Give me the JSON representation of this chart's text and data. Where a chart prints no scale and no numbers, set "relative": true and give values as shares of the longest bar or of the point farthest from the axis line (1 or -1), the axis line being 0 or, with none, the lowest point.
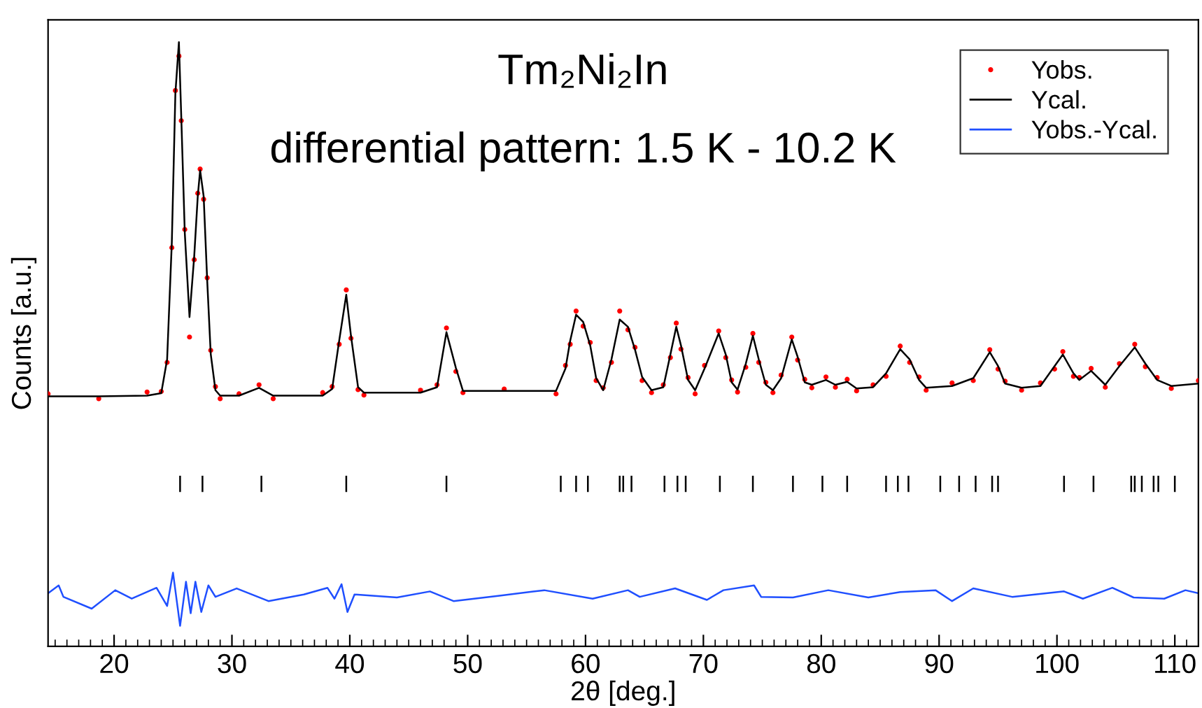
{
  "chart_data": {
    "type": "line",
    "title": "Tm₂Ni₂In",
    "subtitle": "differential pattern: 1.5 K - 10.2 K",
    "xlabel": "2θ [deg.]",
    "ylabel": "Counts [a.u.]",
    "relative": true,
    "tick_labels": "x",
    "legend": "top right",
    "grid": false,
    "xlim": [
      14.4,
      112.0
    ],
    "xticks": [
      {
        "value": 15,
        "label": null
      },
      {
        "value": 16,
        "label": null
      },
      {
        "value": 17,
        "label": null
      },
      {
        "value": 18,
        "label": null
      },
      {
        "value": 19,
        "label": null
      },
      20,
      {
        "value": 21,
        "label": null
      },
      {
        "value": 22,
        "label": null
      },
      {
        "value": 23,
        "label": null
      },
      {
        "value": 24,
        "label": null
      },
      {
        "value": 25,
        "label": null
      },
      {
        "value": 26,
        "label": null
      },
      {
        "value": 27,
        "label": null
      },
      {
        "value": 28,
        "label": null
      },
      {
        "value": 29,
        "label": null
      },
      30,
      {
        "value": 31,
        "label": null
      },
      {
        "value": 32,
        "label": null
      },
      {
        "value": 33,
        "label": null
      },
      {
        "value": 34,
        "label": null
      },
      {
        "value": 35,
        "label": null
      },
      {
        "value": 36,
        "label": null
      },
      {
        "value": 37,
        "label": null
      },
      {
        "value": 38,
        "label": null
      },
      {
        "value": 39,
        "label": null
      },
      40,
      {
        "value": 41,
        "label": null
      },
      {
        "value": 42,
        "label": null
      },
      {
        "value": 43,
        "label": null
      },
      {
        "value": 44,
        "label": null
      },
      {
        "value": 45,
        "label": null
      },
      {
        "value": 46,
        "label": null
      },
      {
        "value": 47,
        "label": null
      },
      {
        "value": 48,
        "label": null
      },
      {
        "value": 49,
        "label": null
      },
      50,
      {
        "value": 51,
        "label": null
      },
      {
        "value": 52,
        "label": null
      },
      {
        "value": 53,
        "label": null
      },
      {
        "value": 54,
        "label": null
      },
      {
        "value": 55,
        "label": null
      },
      {
        "value": 56,
        "label": null
      },
      {
        "value": 57,
        "label": null
      },
      {
        "value": 58,
        "label": null
      },
      {
        "value": 59,
        "label": null
      },
      60,
      {
        "value": 61,
        "label": null
      },
      {
        "value": 62,
        "label": null
      },
      {
        "value": 63,
        "label": null
      },
      {
        "value": 64,
        "label": null
      },
      {
        "value": 65,
        "label": null
      },
      {
        "value": 66,
        "label": null
      },
      {
        "value": 67,
        "label": null
      },
      {
        "value": 68,
        "label": null
      },
      {
        "value": 69,
        "label": null
      },
      70,
      {
        "value": 71,
        "label": null
      },
      {
        "value": 72,
        "label": null
      },
      {
        "value": 73,
        "label": null
      },
      {
        "value": 74,
        "label": null
      },
      {
        "value": 75,
        "label": null
      },
      {
        "value": 76,
        "label": null
      },
      {
        "value": 77,
        "label": null
      },
      {
        "value": 78,
        "label": null
      },
      {
        "value": 79,
        "label": null
      },
      80,
      {
        "value": 81,
        "label": null
      },
      {
        "value": 82,
        "label": null
      },
      {
        "value": 83,
        "label": null
      },
      {
        "value": 84,
        "label": null
      },
      {
        "value": 85,
        "label": null
      },
      {
        "value": 86,
        "label": null
      },
      {
        "value": 87,
        "label": null
      },
      {
        "value": 88,
        "label": null
      },
      {
        "value": 89,
        "label": null
      },
      90,
      {
        "value": 91,
        "label": null
      },
      {
        "value": 92,
        "label": null
      },
      {
        "value": 93,
        "label": null
      },
      {
        "value": 94,
        "label": null
      },
      {
        "value": 95,
        "label": null
      },
      {
        "value": 96,
        "label": null
      },
      {
        "value": 97,
        "label": null
      },
      {
        "value": 98,
        "label": null
      },
      {
        "value": 99,
        "label": null
      },
      100,
      {
        "value": 101,
        "label": null
      },
      {
        "value": 102,
        "label": null
      },
      {
        "value": 103,
        "label": null
      },
      {
        "value": 104,
        "label": null
      },
      {
        "value": 105,
        "label": null
      },
      {
        "value": 106,
        "label": null
      },
      {
        "value": 107,
        "label": null
      },
      {
        "value": 108,
        "label": null
      },
      {
        "value": 109,
        "label": null
      },
      110,
      {
        "value": 111,
        "label": null
      }
    ],
    "series": [
      {
        "name": "Yobs.",
        "type": "scatter",
        "marker": "circle",
        "color": "#ff0000",
        "x": [
          14.4,
          18.7,
          22.8,
          24.0,
          24.5,
          24.9,
          25.2,
          25.5,
          25.7,
          26.0,
          26.4,
          26.8,
          27.1,
          27.3,
          27.6,
          27.9,
          28.2,
          28.6,
          29.0,
          30.6,
          32.3,
          33.5,
          37.7,
          38.5,
          39.1,
          39.7,
          40.1,
          40.7,
          41.2,
          46.0,
          47.4,
          48.2,
          49.0,
          49.6,
          53.1,
          57.5,
          58.3,
          58.7,
          59.2,
          59.8,
          60.4,
          60.9,
          61.5,
          62.2,
          62.9,
          63.6,
          64.2,
          64.8,
          65.6,
          66.6,
          67.2,
          67.7,
          68.1,
          68.7,
          69.3,
          70.1,
          71.3,
          71.9,
          72.4,
          72.9,
          73.6,
          74.2,
          74.7,
          75.3,
          75.9,
          76.6,
          77.5,
          78.0,
          78.6,
          79.2,
          80.4,
          81.2,
          82.2,
          83.0,
          84.4,
          85.5,
          86.7,
          87.5,
          88.3,
          88.9,
          91.1,
          92.9,
          94.3,
          95.0,
          95.6,
          97.0,
          98.6,
          99.8,
          100.5,
          101.4,
          101.9,
          102.9,
          104.1,
          105.3,
          106.6,
          107.5,
          108.5,
          109.7,
          112.0
        ],
        "values": [
          0.418,
          0.41,
          0.421,
          0.422,
          0.47,
          0.66,
          0.92,
          0.977,
          0.87,
          0.69,
          0.512,
          0.64,
          0.75,
          0.79,
          0.74,
          0.61,
          0.49,
          0.43,
          0.41,
          0.418,
          0.433,
          0.41,
          0.42,
          0.43,
          0.5,
          0.59,
          0.51,
          0.425,
          0.416,
          0.424,
          0.433,
          0.527,
          0.455,
          0.42,
          0.426,
          0.418,
          0.465,
          0.5,
          0.555,
          0.53,
          0.503,
          0.44,
          0.428,
          0.47,
          0.555,
          0.524,
          0.495,
          0.44,
          0.42,
          0.433,
          0.478,
          0.535,
          0.492,
          0.445,
          0.418,
          0.465,
          0.522,
          0.478,
          0.441,
          0.421,
          0.462,
          0.518,
          0.47,
          0.437,
          0.42,
          0.449,
          0.512,
          0.474,
          0.442,
          0.428,
          0.446,
          0.429,
          0.442,
          0.423,
          0.433,
          0.447,
          0.497,
          0.47,
          0.446,
          0.424,
          0.436,
          0.44,
          0.491,
          0.459,
          0.439,
          0.424,
          0.436,
          0.459,
          0.488,
          0.447,
          0.445,
          0.46,
          0.429,
          0.468,
          0.5,
          0.463,
          0.445,
          0.427,
          0.44
        ]
      },
      {
        "name": "Ycal.",
        "color": "#000000",
        "x": [
          14.4,
          18.7,
          22.8,
          24.0,
          24.5,
          24.9,
          25.2,
          25.5,
          25.7,
          26.0,
          26.4,
          26.8,
          27.1,
          27.3,
          27.6,
          27.9,
          28.2,
          28.6,
          29.0,
          30.6,
          32.3,
          33.5,
          37.7,
          38.5,
          39.1,
          39.7,
          40.1,
          40.7,
          41.2,
          46.0,
          47.4,
          48.2,
          49.0,
          49.6,
          53.1,
          57.5,
          58.3,
          58.7,
          59.2,
          59.8,
          60.4,
          60.9,
          61.5,
          62.2,
          62.9,
          63.6,
          64.2,
          64.8,
          65.6,
          66.6,
          67.2,
          67.7,
          68.1,
          68.7,
          69.3,
          70.1,
          71.3,
          71.9,
          72.4,
          72.9,
          73.6,
          74.2,
          74.7,
          75.3,
          75.9,
          76.6,
          77.5,
          78.0,
          78.6,
          79.2,
          80.4,
          81.2,
          82.2,
          83.0,
          84.4,
          85.5,
          86.7,
          87.5,
          88.3,
          88.9,
          91.1,
          92.9,
          94.3,
          95.0,
          95.6,
          97.0,
          98.6,
          99.8,
          100.5,
          101.4,
          101.9,
          102.9,
          104.1,
          105.3,
          106.6,
          107.5,
          108.5,
          109.7,
          112.0
        ],
        "values": [
          0.414,
          0.414,
          0.415,
          0.419,
          0.475,
          0.669,
          0.915,
          1.0,
          0.877,
          0.684,
          0.545,
          0.646,
          0.745,
          0.788,
          0.745,
          0.606,
          0.484,
          0.424,
          0.415,
          0.415,
          0.428,
          0.415,
          0.415,
          0.426,
          0.506,
          0.582,
          0.514,
          0.429,
          0.42,
          0.42,
          0.429,
          0.52,
          0.461,
          0.423,
          0.423,
          0.423,
          0.46,
          0.506,
          0.549,
          0.537,
          0.498,
          0.444,
          0.424,
          0.475,
          0.541,
          0.529,
          0.491,
          0.446,
          0.424,
          0.429,
          0.483,
          0.529,
          0.498,
          0.441,
          0.424,
          0.46,
          0.518,
          0.483,
          0.437,
          0.425,
          0.468,
          0.514,
          0.475,
          0.433,
          0.424,
          0.444,
          0.508,
          0.479,
          0.437,
          0.433,
          0.441,
          0.433,
          0.438,
          0.427,
          0.429,
          0.452,
          0.492,
          0.475,
          0.441,
          0.428,
          0.431,
          0.444,
          0.487,
          0.464,
          0.435,
          0.428,
          0.431,
          0.464,
          0.483,
          0.452,
          0.441,
          0.456,
          0.433,
          0.464,
          0.495,
          0.468,
          0.441,
          0.431,
          0.435
        ]
      },
      {
        "name": "Yobs.-Ycal.",
        "color": "#1f4fff",
        "x": [
          14.4,
          15.3,
          15.7,
          18.1,
          20.1,
          21.5,
          23.6,
          24.5,
          25.0,
          25.6,
          26.1,
          26.5,
          26.9,
          27.4,
          28.0,
          28.6,
          30.4,
          33.1,
          36.1,
          38.1,
          38.7,
          39.3,
          39.8,
          40.4,
          44.0,
          46.8,
          48.8,
          52.7,
          56.5,
          60.6,
          63.6,
          64.6,
          67.6,
          70.3,
          71.7,
          74.3,
          74.9,
          77.6,
          80.6,
          84.0,
          86.7,
          89.7,
          91.1,
          92.9,
          96.2,
          100.6,
          102.2,
          104.7,
          106.5,
          109.1,
          110.9,
          112.0
        ],
        "values": [
          0.088,
          0.101,
          0.082,
          0.0625,
          0.093,
          0.079,
          0.097,
          0.067,
          0.122,
          0.034,
          0.107,
          0.055,
          0.107,
          0.057,
          0.101,
          0.082,
          0.096,
          0.075,
          0.086,
          0.097,
          0.079,
          0.103,
          0.057,
          0.086,
          0.081,
          0.091,
          0.075,
          0.084,
          0.093,
          0.079,
          0.093,
          0.082,
          0.096,
          0.077,
          0.093,
          0.101,
          0.082,
          0.081,
          0.093,
          0.081,
          0.09,
          0.093,
          0.075,
          0.096,
          0.082,
          0.091,
          0.079,
          0.097,
          0.081,
          0.079,
          0.093,
          0.088
        ]
      },
      {
        "type": "line",
        "color": "#000000",
        "x": [
          25.6,
          25.6,
          null,
          27.5,
          27.5,
          null,
          32.5,
          32.5,
          null,
          39.7,
          39.7,
          null,
          48.2,
          48.2,
          null,
          57.9,
          57.9,
          null,
          59.2,
          59.2,
          null,
          60.2,
          60.2,
          null,
          62.9,
          62.9,
          null,
          63.2,
          63.2,
          null,
          63.9,
          63.9,
          null,
          66.7,
          66.7,
          null,
          67.8,
          67.8,
          null,
          68.5,
          68.5,
          null,
          71.4,
          71.4,
          null,
          74.2,
          74.2,
          null,
          77.6,
          77.6,
          null,
          80.1,
          80.1,
          null,
          82.2,
          82.2,
          null,
          85.5,
          85.5,
          null,
          86.5,
          86.5,
          null,
          87.4,
          87.4,
          null,
          90.1,
          90.1,
          null,
          91.7,
          91.7,
          null,
          93.1,
          93.1,
          null,
          94.5,
          94.5,
          null,
          95.0,
          95.0,
          null,
          100.6,
          100.6,
          null,
          103.1,
          103.1,
          null,
          106.3,
          106.3,
          null,
          106.6,
          106.6,
          null,
          107.2,
          107.2,
          null,
          108.2,
          108.2,
          null,
          108.6,
          108.6,
          null,
          110.0,
          110.0
        ],
        "values": [
          0.257,
          0.281,
          null,
          0.257,
          0.281,
          null,
          0.257,
          0.281,
          null,
          0.257,
          0.281,
          null,
          0.257,
          0.281,
          null,
          0.257,
          0.281,
          null,
          0.257,
          0.281,
          null,
          0.257,
          0.281,
          null,
          0.257,
          0.281,
          null,
          0.257,
          0.281,
          null,
          0.257,
          0.281,
          null,
          0.257,
          0.281,
          null,
          0.257,
          0.281,
          null,
          0.257,
          0.281,
          null,
          0.257,
          0.281,
          null,
          0.257,
          0.281,
          null,
          0.257,
          0.281,
          null,
          0.257,
          0.281,
          null,
          0.257,
          0.281,
          null,
          0.257,
          0.281,
          null,
          0.257,
          0.281,
          null,
          0.257,
          0.281,
          null,
          0.257,
          0.281,
          null,
          0.257,
          0.281,
          null,
          0.257,
          0.281,
          null,
          0.257,
          0.281,
          null,
          0.257,
          0.281,
          null,
          0.257,
          0.281,
          null,
          0.257,
          0.281,
          null,
          0.257,
          0.281,
          null,
          0.257,
          0.281,
          null,
          0.257,
          0.281,
          null,
          0.257,
          0.281,
          null,
          0.257,
          0.281,
          null,
          0.257,
          0.281
        ]
      }
    ]
  }
}
